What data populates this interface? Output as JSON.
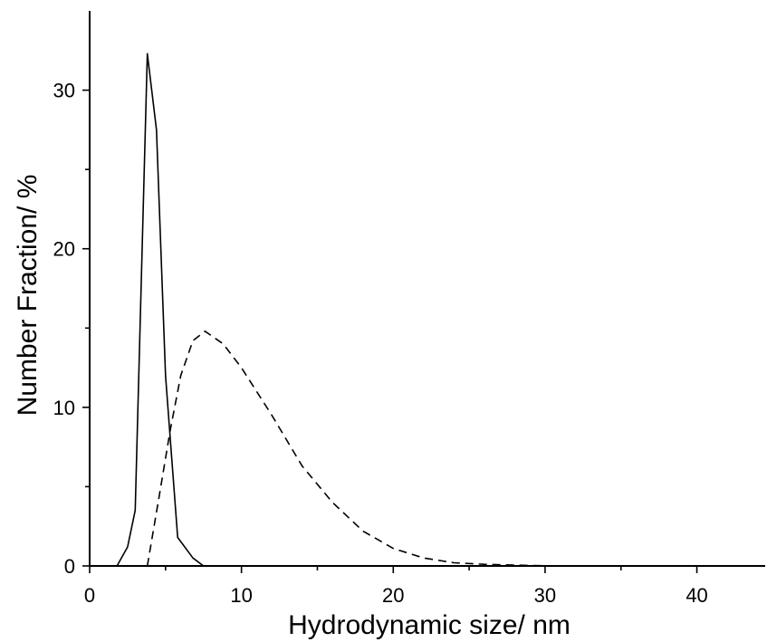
{
  "chart_data": {
    "type": "line",
    "xlabel": "Hydrodynamic size/ nm",
    "ylabel": "Number Fraction/ %",
    "xlim": [
      0,
      44.5
    ],
    "ylim": [
      0,
      35
    ],
    "xticks": [
      0,
      10,
      20,
      30,
      40
    ],
    "yticks": [
      0,
      10,
      20,
      30
    ],
    "grid": false,
    "legend": "none",
    "series": [
      {
        "style": "solid",
        "color": "#000000",
        "x": [
          1.8,
          2.5,
          3.0,
          3.8,
          4.4,
          5.0,
          5.8,
          6.8,
          7.5
        ],
        "y": [
          0.0,
          1.2,
          3.5,
          32.3,
          27.5,
          12.0,
          1.8,
          0.5,
          0.0
        ]
      },
      {
        "style": "dashed",
        "color": "#000000",
        "x": [
          3.8,
          4.6,
          5.3,
          6.0,
          6.8,
          7.6,
          8.8,
          10.0,
          12.0,
          14.0,
          16.0,
          18.0,
          20.0,
          22.0,
          24.0,
          26.0,
          28.0,
          30.0,
          31.5
        ],
        "y": [
          0.0,
          4.5,
          8.5,
          12.0,
          14.2,
          14.8,
          14.0,
          12.5,
          9.5,
          6.3,
          4.0,
          2.2,
          1.1,
          0.5,
          0.2,
          0.1,
          0.05,
          0.01,
          0.0
        ]
      }
    ]
  }
}
